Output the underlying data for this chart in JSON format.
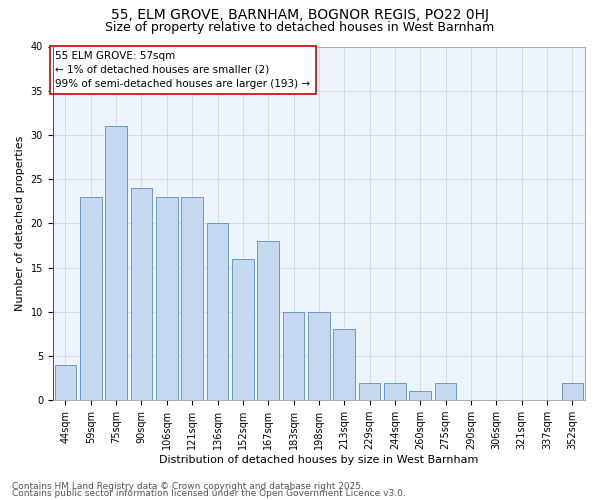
{
  "title": "55, ELM GROVE, BARNHAM, BOGNOR REGIS, PO22 0HJ",
  "subtitle": "Size of property relative to detached houses in West Barnham",
  "xlabel": "Distribution of detached houses by size in West Barnham",
  "ylabel": "Number of detached properties",
  "categories": [
    "44sqm",
    "59sqm",
    "75sqm",
    "90sqm",
    "106sqm",
    "121sqm",
    "136sqm",
    "152sqm",
    "167sqm",
    "183sqm",
    "198sqm",
    "213sqm",
    "229sqm",
    "244sqm",
    "260sqm",
    "275sqm",
    "290sqm",
    "306sqm",
    "321sqm",
    "337sqm",
    "352sqm"
  ],
  "values": [
    4,
    23,
    31,
    24,
    23,
    23,
    20,
    16,
    18,
    10,
    10,
    8,
    2,
    2,
    1,
    2,
    0,
    0,
    0,
    0,
    2
  ],
  "bar_color": "#c5d8f0",
  "bar_edge_color": "#5a8fc2",
  "highlight_color": "#cc0000",
  "annotation_text": "55 ELM GROVE: 57sqm\n← 1% of detached houses are smaller (2)\n99% of semi-detached houses are larger (193) →",
  "annotation_box_color": "#ffffff",
  "annotation_box_edge": "#cc0000",
  "ylim": [
    0,
    40
  ],
  "yticks": [
    0,
    5,
    10,
    15,
    20,
    25,
    30,
    35,
    40
  ],
  "grid_color": "#c8d8e8",
  "background_color": "#eef4fb",
  "footer_line1": "Contains HM Land Registry data © Crown copyright and database right 2025.",
  "footer_line2": "Contains public sector information licensed under the Open Government Licence v3.0.",
  "title_fontsize": 10,
  "subtitle_fontsize": 9,
  "axis_label_fontsize": 8,
  "tick_fontsize": 7,
  "annotation_fontsize": 7.5,
  "footer_fontsize": 6.5
}
